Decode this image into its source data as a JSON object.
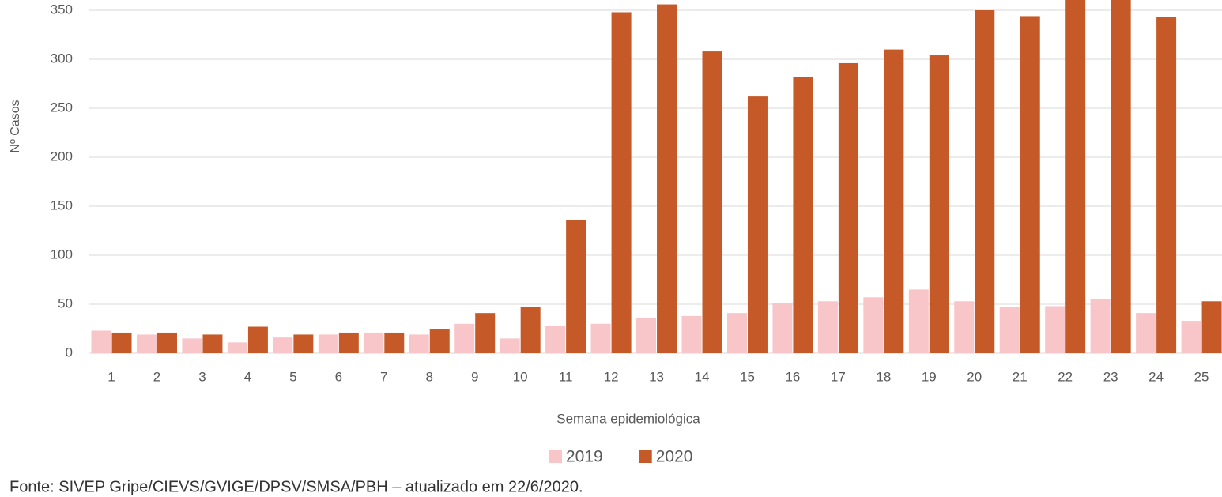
{
  "chart_data": {
    "type": "bar",
    "y_label": "Nº Casos",
    "x_label": "Semana epidemiológica",
    "source": "Fonte: SIVEP Gripe/CIEVS/GVIGE/DPSV/SMSA/PBH – atualizado em 22/6/2020.",
    "categories": [
      "1",
      "2",
      "3",
      "4",
      "5",
      "6",
      "7",
      "8",
      "9",
      "10",
      "11",
      "12",
      "13",
      "14",
      "15",
      "16",
      "17",
      "18",
      "19",
      "20",
      "21",
      "22",
      "23",
      "24",
      "25"
    ],
    "series": [
      {
        "name": "2019",
        "color": "#f8c5c8",
        "values": [
          23,
          19,
          15,
          11,
          16,
          19,
          21,
          19,
          30,
          15,
          28,
          30,
          36,
          38,
          41,
          51,
          53,
          57,
          65,
          53,
          47,
          48,
          55,
          41,
          33
        ]
      },
      {
        "name": "2020",
        "color": "#c55a28",
        "values": [
          21,
          21,
          19,
          27,
          19,
          21,
          21,
          25,
          41,
          47,
          136,
          348,
          356,
          308,
          262,
          282,
          296,
          310,
          304,
          350,
          344,
          380,
          375,
          343,
          53
        ]
      }
    ],
    "ylim": [
      0,
      400
    ],
    "yticks": [
      0,
      50,
      100,
      150,
      200,
      250,
      300,
      350
    ],
    "grid": true,
    "legend": "bottom"
  }
}
